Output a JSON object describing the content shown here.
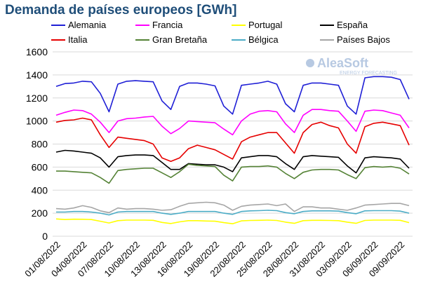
{
  "title": "Demanda de países europeos [GWh]",
  "watermark": {
    "brand": "AleaSoft",
    "tagline": "ENERGY FORECASTING"
  },
  "chart_data": {
    "type": "line",
    "title": "Demanda de países europeos [GWh]",
    "xlabel": "",
    "ylabel": "",
    "ylim": [
      0,
      1600
    ],
    "yticks": [
      0,
      200,
      400,
      600,
      800,
      1000,
      1200,
      1400,
      1600
    ],
    "grid": "horizontal",
    "legend": "top",
    "x": [
      "01/08/2022",
      "02/08/2022",
      "03/08/2022",
      "04/08/2022",
      "05/08/2022",
      "06/08/2022",
      "07/08/2022",
      "08/08/2022",
      "09/08/2022",
      "10/08/2022",
      "11/08/2022",
      "12/08/2022",
      "13/08/2022",
      "14/08/2022",
      "15/08/2022",
      "16/08/2022",
      "17/08/2022",
      "18/08/2022",
      "19/08/2022",
      "20/08/2022",
      "21/08/2022",
      "22/08/2022",
      "23/08/2022",
      "24/08/2022",
      "25/08/2022",
      "26/08/2022",
      "27/08/2022",
      "28/08/2022",
      "29/08/2022",
      "30/08/2022",
      "31/08/2022",
      "01/09/2022",
      "02/09/2022",
      "03/09/2022",
      "04/09/2022",
      "05/09/2022",
      "06/09/2022",
      "07/09/2022",
      "08/09/2022",
      "09/09/2022",
      "10/09/2022"
    ],
    "xtick_labels": [
      "01/08/2022",
      "04/08/2022",
      "07/08/2022",
      "10/08/2022",
      "13/08/2022",
      "16/08/2022",
      "19/08/2022",
      "22/08/2022",
      "25/08/2022",
      "28/08/2022",
      "31/08/2022",
      "03/09/2022",
      "06/09/2022",
      "09/09/2022"
    ],
    "series": [
      {
        "name": "Alemania",
        "color": "#1f1fd6",
        "values": [
          1300,
          1325,
          1330,
          1345,
          1340,
          1240,
          1080,
          1320,
          1345,
          1350,
          1345,
          1340,
          1175,
          1100,
          1300,
          1330,
          1330,
          1320,
          1305,
          1130,
          1060,
          1310,
          1320,
          1330,
          1345,
          1320,
          1150,
          1080,
          1310,
          1330,
          1330,
          1320,
          1310,
          1130,
          1060,
          1375,
          1385,
          1385,
          1380,
          1360,
          1190
        ]
      },
      {
        "name": "Francia",
        "color": "#ff00ff",
        "values": [
          1050,
          1075,
          1095,
          1090,
          1060,
          990,
          900,
          1000,
          1020,
          1025,
          1035,
          1040,
          955,
          890,
          935,
          1000,
          995,
          990,
          985,
          930,
          880,
          1000,
          1060,
          1085,
          1090,
          1080,
          975,
          900,
          1050,
          1100,
          1100,
          1090,
          1085,
          1000,
          910,
          1085,
          1095,
          1090,
          1070,
          1050,
          940
        ]
      },
      {
        "name": "Portugal",
        "color": "#ffff00",
        "values": [
          150,
          145,
          148,
          147,
          145,
          130,
          115,
          135,
          140,
          140,
          140,
          138,
          120,
          110,
          125,
          135,
          135,
          132,
          130,
          118,
          108,
          133,
          137,
          138,
          140,
          137,
          122,
          112,
          135,
          138,
          138,
          137,
          135,
          122,
          112,
          137,
          140,
          140,
          140,
          138,
          118
        ]
      },
      {
        "name": "España",
        "color": "#000000",
        "values": [
          730,
          745,
          740,
          730,
          720,
          680,
          600,
          690,
          700,
          705,
          705,
          700,
          640,
          580,
          580,
          630,
          625,
          620,
          620,
          600,
          560,
          680,
          690,
          700,
          700,
          690,
          630,
          580,
          690,
          700,
          695,
          690,
          685,
          610,
          550,
          680,
          690,
          685,
          680,
          670,
          590
        ]
      },
      {
        "name": "Italia",
        "color": "#e60000",
        "values": [
          990,
          1005,
          1010,
          1025,
          1010,
          880,
          770,
          860,
          850,
          840,
          830,
          800,
          680,
          650,
          680,
          760,
          790,
          770,
          750,
          710,
          670,
          820,
          860,
          880,
          900,
          900,
          810,
          720,
          900,
          970,
          990,
          960,
          940,
          800,
          720,
          950,
          980,
          990,
          975,
          960,
          790
        ]
      },
      {
        "name": "Gran Bretaña",
        "color": "#548235",
        "values": [
          565,
          565,
          560,
          555,
          550,
          510,
          460,
          570,
          580,
          585,
          590,
          590,
          550,
          510,
          560,
          625,
          615,
          610,
          605,
          530,
          480,
          600,
          605,
          605,
          610,
          600,
          545,
          500,
          555,
          575,
          580,
          580,
          575,
          535,
          500,
          595,
          605,
          600,
          605,
          590,
          540
        ]
      },
      {
        "name": "Bélgica",
        "color": "#4bacc6",
        "values": [
          210,
          210,
          215,
          215,
          210,
          200,
          185,
          210,
          215,
          215,
          215,
          215,
          200,
          190,
          200,
          215,
          215,
          215,
          215,
          200,
          190,
          215,
          220,
          222,
          225,
          222,
          205,
          195,
          215,
          220,
          220,
          220,
          218,
          205,
          195,
          220,
          222,
          222,
          222,
          218,
          200
        ]
      },
      {
        "name": "Países Bajos",
        "color": "#a6a6a6",
        "values": [
          240,
          235,
          245,
          265,
          250,
          220,
          205,
          245,
          235,
          240,
          240,
          235,
          225,
          230,
          260,
          285,
          290,
          295,
          290,
          270,
          225,
          260,
          270,
          275,
          280,
          265,
          280,
          215,
          255,
          255,
          245,
          245,
          235,
          225,
          245,
          270,
          275,
          280,
          285,
          285,
          265
        ]
      }
    ]
  }
}
